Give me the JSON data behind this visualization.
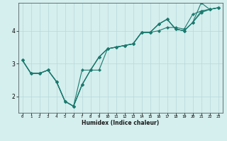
{
  "xlabel": "Humidex (Indice chaleur)",
  "background_color": "#d5eeee",
  "line_color": "#1a7a6e",
  "grid_color": "#b8d8d8",
  "xlim": [
    -0.5,
    23.5
  ],
  "ylim": [
    1.5,
    4.85
  ],
  "yticks": [
    2,
    3,
    4
  ],
  "xticks": [
    0,
    1,
    2,
    3,
    4,
    5,
    6,
    7,
    8,
    9,
    10,
    11,
    12,
    13,
    14,
    15,
    16,
    17,
    18,
    19,
    20,
    21,
    22,
    23
  ],
  "series": [
    [
      3.1,
      2.7,
      2.7,
      2.8,
      2.45,
      1.85,
      1.7,
      2.8,
      2.8,
      2.8,
      3.45,
      3.5,
      3.55,
      3.6,
      3.95,
      3.95,
      4.0,
      4.1,
      4.1,
      4.05,
      4.5,
      4.6,
      4.65,
      4.7
    ],
    [
      3.1,
      2.7,
      2.7,
      2.8,
      2.45,
      1.85,
      1.7,
      2.35,
      2.8,
      3.2,
      3.45,
      3.5,
      3.55,
      3.6,
      3.95,
      3.95,
      4.2,
      4.35,
      4.05,
      4.0,
      4.25,
      4.6,
      4.65,
      4.7
    ],
    [
      3.1,
      2.7,
      2.7,
      2.8,
      2.45,
      1.85,
      1.7,
      2.35,
      2.8,
      3.2,
      3.45,
      3.5,
      3.55,
      3.6,
      3.95,
      3.95,
      4.2,
      4.35,
      4.05,
      4.0,
      4.25,
      4.55,
      4.65,
      4.7
    ],
    [
      3.1,
      2.7,
      2.7,
      2.8,
      2.45,
      1.85,
      1.7,
      2.35,
      2.8,
      3.2,
      3.45,
      3.5,
      3.55,
      3.6,
      3.95,
      3.95,
      4.2,
      4.35,
      4.05,
      4.0,
      4.25,
      4.85,
      4.65,
      4.7
    ]
  ]
}
